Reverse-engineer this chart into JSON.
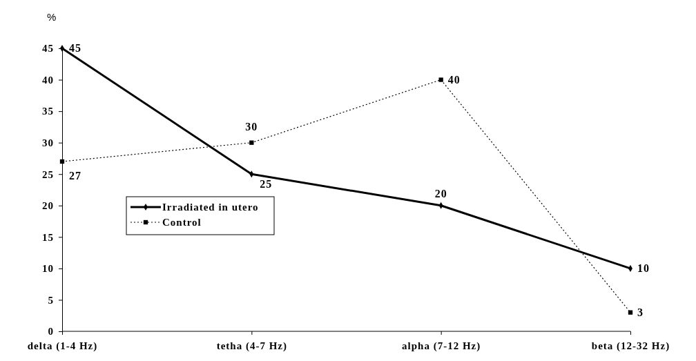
{
  "chart_data": {
    "type": "line",
    "ylabel": "%",
    "categories": [
      "delta (1-4 Hz)",
      "tetha (4-7 Hz)",
      "alpha (7-12 Hz)",
      "beta (12-32 Hz)"
    ],
    "series": [
      {
        "name": "Irradiated in utero",
        "color": "#000000",
        "values": [
          45,
          25,
          20,
          10
        ],
        "marker": "diamond",
        "line_style": "solid"
      },
      {
        "name": "Control",
        "color": "#000000",
        "values": [
          27,
          30,
          40,
          3
        ],
        "marker": "square",
        "line_style": "dotted"
      }
    ],
    "ylim": [
      0,
      45
    ],
    "yticks": [
      0,
      5,
      10,
      15,
      20,
      25,
      30,
      35,
      40,
      45
    ],
    "grid": false,
    "legend": "left",
    "data_labels": true
  }
}
